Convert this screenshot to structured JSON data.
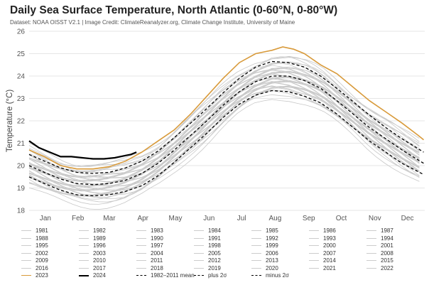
{
  "chart_data": {
    "type": "line",
    "title": "Daily Sea Surface Temperature, North Atlantic (0-60°N, 0-80°W)",
    "subtitle": "Dataset: NOAA OISST V2.1 | Image Credit: ClimateReanalyzer.org, Climate Change Institute, University of Maine",
    "xlabel": "",
    "ylabel": "Temperature (°C)",
    "ylim": [
      18,
      26
    ],
    "yticks": [
      18,
      19,
      20,
      21,
      22,
      23,
      24,
      25,
      26
    ],
    "xlim": [
      1,
      366
    ],
    "x_categories": [
      "Jan",
      "Feb",
      "Mar",
      "Apr",
      "May",
      "Jun",
      "Jul",
      "Aug",
      "Sep",
      "Oct",
      "Nov",
      "Dec"
    ],
    "x_category_days": [
      16,
      46,
      75,
      106,
      136,
      167,
      197,
      228,
      259,
      289,
      320,
      350
    ],
    "grid": true,
    "legend_position": "bottom",
    "series": [
      {
        "name": "1982–2011 mean",
        "style": "dashed",
        "color": "#000000",
        "x": [
          1,
          15,
          30,
          45,
          60,
          75,
          90,
          105,
          120,
          135,
          150,
          165,
          180,
          195,
          210,
          225,
          240,
          255,
          270,
          285,
          300,
          315,
          330,
          345,
          365
        ],
        "y": [
          20.0,
          19.7,
          19.4,
          19.2,
          19.15,
          19.2,
          19.35,
          19.65,
          20.1,
          20.7,
          21.35,
          22.0,
          22.7,
          23.3,
          23.75,
          24.0,
          24.0,
          23.8,
          23.45,
          22.9,
          22.3,
          21.7,
          21.2,
          20.7,
          20.1
        ]
      },
      {
        "name": "plus 2σ",
        "style": "dashed",
        "color": "#000000",
        "x": [
          1,
          15,
          30,
          45,
          60,
          75,
          90,
          105,
          120,
          135,
          150,
          165,
          180,
          195,
          210,
          225,
          240,
          255,
          270,
          285,
          300,
          315,
          330,
          345,
          365
        ],
        "y": [
          20.5,
          20.2,
          19.9,
          19.7,
          19.65,
          19.7,
          19.9,
          20.2,
          20.65,
          21.25,
          21.9,
          22.55,
          23.25,
          23.9,
          24.4,
          24.65,
          24.6,
          24.4,
          24.0,
          23.45,
          22.85,
          22.25,
          21.7,
          21.2,
          20.6
        ]
      },
      {
        "name": "minus 2σ",
        "style": "dashed",
        "color": "#000000",
        "x": [
          1,
          15,
          30,
          45,
          60,
          75,
          90,
          105,
          120,
          135,
          150,
          165,
          180,
          195,
          210,
          225,
          240,
          255,
          270,
          285,
          300,
          315,
          330,
          345,
          365
        ],
        "y": [
          19.5,
          19.2,
          18.9,
          18.7,
          18.65,
          18.7,
          18.85,
          19.1,
          19.55,
          20.15,
          20.8,
          21.45,
          22.15,
          22.75,
          23.15,
          23.35,
          23.3,
          23.1,
          22.8,
          22.3,
          21.7,
          21.1,
          20.6,
          20.1,
          19.6
        ]
      },
      {
        "name": "2023",
        "style": "solid",
        "color": "#d89a3a",
        "x": [
          1,
          15,
          30,
          45,
          60,
          75,
          90,
          105,
          120,
          135,
          150,
          165,
          180,
          195,
          210,
          225,
          235,
          245,
          255,
          270,
          285,
          300,
          315,
          330,
          345,
          360,
          365
        ],
        "y": [
          20.7,
          20.4,
          20.0,
          19.85,
          19.85,
          19.95,
          20.2,
          20.6,
          21.1,
          21.6,
          22.3,
          23.1,
          23.9,
          24.6,
          25.0,
          25.15,
          25.3,
          25.2,
          25.0,
          24.5,
          24.1,
          23.5,
          22.9,
          22.4,
          21.9,
          21.35,
          21.15
        ]
      },
      {
        "name": "2024",
        "style": "solid",
        "color": "#000000",
        "x": [
          1,
          10,
          20,
          30,
          40,
          50,
          60,
          70,
          80,
          90,
          95,
          100
        ],
        "y": [
          21.1,
          20.8,
          20.6,
          20.4,
          20.4,
          20.35,
          20.3,
          20.3,
          20.35,
          20.45,
          20.5,
          20.6
        ]
      }
    ],
    "legend_entries": [
      "1981",
      "1982",
      "1983",
      "1984",
      "1985",
      "1986",
      "1987",
      "1988",
      "1989",
      "1990",
      "1991",
      "1992",
      "1993",
      "1994",
      "1995",
      "1996",
      "1997",
      "1998",
      "1999",
      "2000",
      "2001",
      "2002",
      "2003",
      "2004",
      "2005",
      "2006",
      "2007",
      "2008",
      "2009",
      "2010",
      "2011",
      "2012",
      "2013",
      "2014",
      "2015",
      "2016",
      "2017",
      "2018",
      "2019",
      "2020",
      "2021",
      "2022",
      "2023",
      "2024",
      "1982–2011 mean",
      "plus 2σ",
      "minus 2σ"
    ],
    "legend_styles": {
      "2023": {
        "color": "#d89a3a",
        "style": "solid"
      },
      "2024": {
        "color": "#000000",
        "style": "solid"
      },
      "1982–2011 mean": {
        "color": "#000000",
        "style": "dashed"
      },
      "plus 2σ": {
        "color": "#000000",
        "style": "dashed"
      },
      "minus 2σ": {
        "color": "#000000",
        "style": "dashed"
      }
    },
    "colors": {
      "background_years": "#c8c8c8",
      "gridline": "#e6e6e6"
    }
  }
}
